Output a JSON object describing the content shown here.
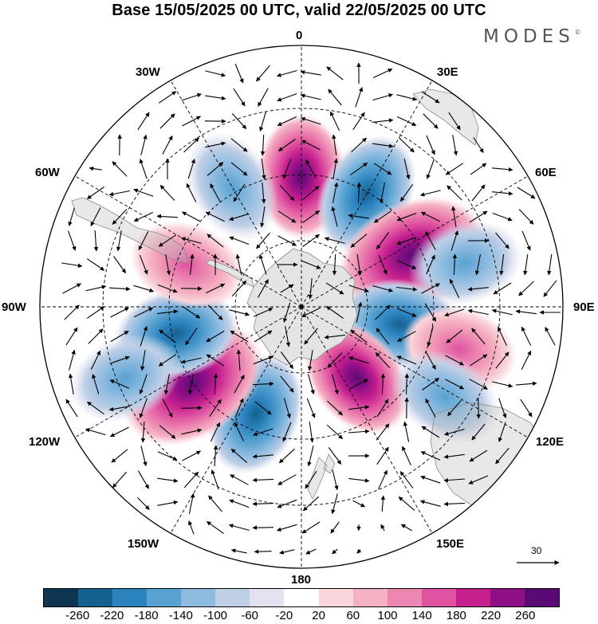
{
  "title": "Base 15/05/2025 00 UTC, valid 22/05/2025 00 UTC",
  "logo": "MODES",
  "logo_mark": "©",
  "longitude_labels": {
    "lon_0": "0",
    "lon_30e": "30E",
    "lon_60e": "60E",
    "lon_90e": "90E",
    "lon_120e": "120E",
    "lon_150e": "150E",
    "lon_180": "180",
    "lon_150w": "150W",
    "lon_120w": "120W",
    "lon_90w": "90W",
    "lon_60w": "60W",
    "lon_30w": "30W"
  },
  "reference_vector": "30",
  "colorbar": {
    "colors": [
      "#0d3653",
      "#14618f",
      "#2c84bf",
      "#58a2d1",
      "#8dbbe0",
      "#bfcfe6",
      "#e4e2f0",
      "#ffffff",
      "#f9d6dc",
      "#f5b2c3",
      "#ec87b1",
      "#df53a1",
      "#c5208e",
      "#8f0f87",
      "#5a0a74"
    ],
    "labels": [
      "-260",
      "-220",
      "-180",
      "-140",
      "-100",
      "-60",
      "-20",
      "20",
      "60",
      "100",
      "140",
      "180",
      "220",
      "260"
    ]
  },
  "anomalies": [
    {
      "sign": "pos",
      "level": 4,
      "lon": 0,
      "lat": -37
    },
    {
      "sign": "neg",
      "level": 4,
      "lon": 30,
      "lat": -37
    },
    {
      "sign": "pos",
      "level": 7,
      "lon": 65,
      "lat": -40
    },
    {
      "sign": "neg",
      "level": 3,
      "lon": 75,
      "lat": -24
    },
    {
      "sign": "neg",
      "level": 4,
      "lon": 100,
      "lat": -48
    },
    {
      "sign": "pos",
      "level": 3,
      "lon": 105,
      "lat": -26
    },
    {
      "sign": "pos",
      "level": 4,
      "lon": 142,
      "lat": -52
    },
    {
      "sign": "neg",
      "level": 3,
      "lon": 122,
      "lat": -24
    },
    {
      "sign": "neg",
      "level": 4,
      "lon": 203,
      "lat": -42
    },
    {
      "sign": "pos",
      "level": 7,
      "lon": 235,
      "lat": -36
    },
    {
      "sign": "neg",
      "level": 4,
      "lon": 258,
      "lat": -38
    },
    {
      "sign": "neg",
      "level": 3,
      "lon": 248,
      "lat": -18
    },
    {
      "sign": "pos",
      "level": 3,
      "lon": 290,
      "lat": -40
    },
    {
      "sign": "neg",
      "level": 3,
      "lon": 330,
      "lat": -34
    }
  ]
}
